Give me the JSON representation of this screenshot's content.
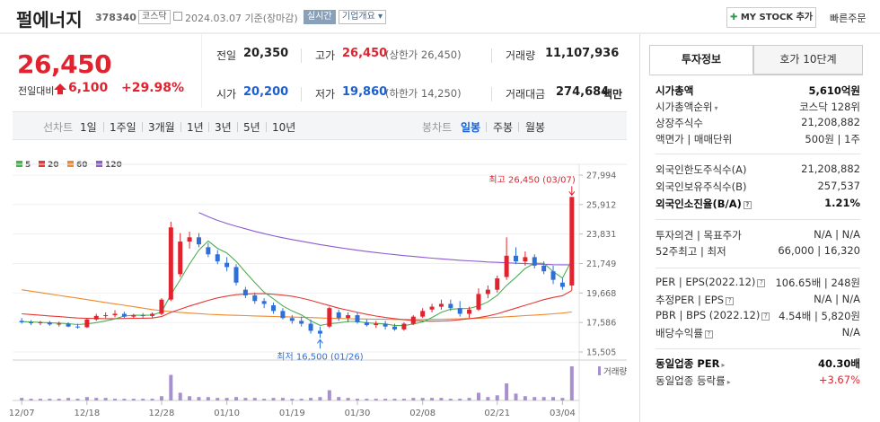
{
  "header": {
    "name": "펄에너지",
    "code": "378340",
    "market": "코스닥",
    "date": "2024.03.07 기준(장마감)",
    "live": "실시간",
    "overview": "기업개요 ▾",
    "mystock": "MY STOCK 추가",
    "quick_order": "빠른주문"
  },
  "price": {
    "current": "26,450",
    "change_label": "전일대비",
    "change": "6,100",
    "change_pct": "+29.98%"
  },
  "stats": {
    "prev_label": "전일",
    "prev": "20,350",
    "high_label": "고가",
    "high": "26,450",
    "high_sub": "(상한가 26,450)",
    "volume_label": "거래량",
    "volume": "11,107,936",
    "open_label": "시가",
    "open": "20,200",
    "low_label": "저가",
    "low": "19,860",
    "low_sub": "(하한가 14,250)",
    "amount_label": "거래대금",
    "amount": "274,684",
    "amount_unit": "백만"
  },
  "tabs": {
    "line_label": "선차트",
    "line_periods": [
      "1일",
      "1주일",
      "3개월",
      "1년",
      "3년",
      "5년",
      "10년"
    ],
    "candle_label": "봉차트",
    "candle_periods": [
      "일봉",
      "주봉",
      "월봉"
    ],
    "active_candle": "일봉"
  },
  "side": {
    "tab_info": "투자정보",
    "tab_quote": "호가 10단계",
    "rows": [
      {
        "label": "시가총액",
        "value": "5,610억원"
      },
      {
        "label": "시가총액순위",
        "value": "코스닥 128위"
      },
      {
        "label": "상장주식수",
        "value": "21,208,882"
      },
      {
        "label": "액면가 | 매매단위",
        "value": "500원 | 1주"
      },
      {
        "label": "외국인한도주식수(A)",
        "value": "21,208,882"
      },
      {
        "label": "외국인보유주식수(B)",
        "value": "257,537"
      },
      {
        "label": "외국인소진율(B/A)",
        "value": "1.21%"
      },
      {
        "label": "투자의견 | 목표주가",
        "value": "N/A | N/A"
      },
      {
        "label": "52주최고 | 최저",
        "value": "66,000 | 16,320"
      },
      {
        "label": "PER | EPS(2022.12)",
        "value": "106.65배 | 248원"
      },
      {
        "label": "추정PER | EPS",
        "value": "N/A | N/A"
      },
      {
        "label": "PBR | BPS (2022.12)",
        "value": "4.54배 | 5,820원"
      },
      {
        "label": "배당수익률",
        "value": "N/A"
      },
      {
        "label": "동일업종 PER",
        "value": "40.30배"
      },
      {
        "label": "동일업종 등락률",
        "value": "+3.67%"
      }
    ]
  },
  "chart_data": {
    "type": "candlestick",
    "legend": [
      "5",
      "20",
      "60",
      "120"
    ],
    "legend_colors": [
      "#4caf50",
      "#e53935",
      "#ef8a2c",
      "#8e5bd0"
    ],
    "y_ticks": [
      "27,994",
      "25,912",
      "23,831",
      "21,749",
      "19,668",
      "17,586",
      "15,505"
    ],
    "ylim": [
      15505,
      27994
    ],
    "x_ticks": [
      "12/07",
      "12/18",
      "12/28",
      "01/10",
      "01/19",
      "01/30",
      "02/08",
      "02/21",
      "03/04"
    ],
    "x_tick_index": [
      0,
      7,
      15,
      22,
      29,
      36,
      43,
      51,
      58
    ],
    "high_annotation": "최고 26,450 (03/07)",
    "low_annotation": "최저 16,500 (01/26)",
    "volume_label": "거래량",
    "candles": [
      [
        17700,
        17900,
        17500,
        17600
      ],
      [
        17600,
        17750,
        17400,
        17550
      ],
      [
        17550,
        17700,
        17400,
        17600
      ],
      [
        17600,
        17700,
        17350,
        17450
      ],
      [
        17450,
        17650,
        17300,
        17500
      ],
      [
        17500,
        17600,
        17250,
        17300
      ],
      [
        17300,
        17500,
        17150,
        17250
      ],
      [
        17250,
        17900,
        17200,
        17800
      ],
      [
        17800,
        18200,
        17700,
        18050
      ],
      [
        18050,
        18300,
        17900,
        18100
      ],
      [
        18100,
        18450,
        17950,
        18200
      ],
      [
        18200,
        18350,
        17900,
        18000
      ],
      [
        18000,
        18200,
        17850,
        18100
      ],
      [
        18100,
        18250,
        17900,
        18050
      ],
      [
        18050,
        18300,
        17900,
        18200
      ],
      [
        18200,
        19300,
        18100,
        19200
      ],
      [
        19200,
        24700,
        19100,
        24300
      ],
      [
        21000,
        23900,
        20800,
        23300
      ],
      [
        23300,
        24000,
        22800,
        23600
      ],
      [
        23600,
        23900,
        22900,
        23100
      ],
      [
        22900,
        23200,
        22200,
        22400
      ],
      [
        22400,
        22700,
        21700,
        21900
      ],
      [
        21800,
        22200,
        21200,
        21500
      ],
      [
        21500,
        21700,
        20200,
        20400
      ],
      [
        19900,
        20100,
        19300,
        19500
      ],
      [
        19500,
        19700,
        18900,
        19100
      ],
      [
        19100,
        19300,
        18600,
        18900
      ],
      [
        18800,
        19000,
        18200,
        18400
      ],
      [
        18400,
        18600,
        17800,
        17900
      ],
      [
        17900,
        18100,
        17500,
        17700
      ],
      [
        17700,
        18000,
        17300,
        17500
      ],
      [
        17500,
        17800,
        16800,
        17000
      ],
      [
        17000,
        17300,
        16500,
        16800
      ],
      [
        17300,
        18700,
        17200,
        18600
      ],
      [
        18300,
        18500,
        17700,
        17900
      ],
      [
        17900,
        18300,
        17600,
        18100
      ],
      [
        18100,
        18300,
        17500,
        17600
      ],
      [
        17600,
        17800,
        17300,
        17400
      ],
      [
        17400,
        17700,
        17200,
        17500
      ],
      [
        17500,
        17700,
        17100,
        17300
      ],
      [
        17300,
        17500,
        17000,
        17100
      ],
      [
        17100,
        17600,
        17000,
        17500
      ],
      [
        17500,
        18100,
        17400,
        18000
      ],
      [
        18000,
        18600,
        17900,
        18400
      ],
      [
        18500,
        18900,
        18300,
        18700
      ],
      [
        18700,
        19200,
        18500,
        18900
      ],
      [
        18900,
        19200,
        18400,
        18600
      ],
      [
        18600,
        19100,
        18000,
        18200
      ],
      [
        18200,
        18700,
        17900,
        18500
      ],
      [
        18500,
        20000,
        18400,
        19600
      ],
      [
        19600,
        20200,
        19300,
        19900
      ],
      [
        19900,
        20900,
        19700,
        20700
      ],
      [
        20800,
        23600,
        20600,
        22300
      ],
      [
        22300,
        22900,
        21700,
        21900
      ],
      [
        21900,
        22600,
        21600,
        22200
      ],
      [
        22200,
        22400,
        21400,
        21600
      ],
      [
        21600,
        21900,
        21000,
        21200
      ],
      [
        21200,
        21600,
        20300,
        20600
      ],
      [
        20400,
        20700,
        19900,
        20100
      ],
      [
        20200,
        26450,
        19860,
        26450
      ]
    ],
    "ma5": [
      17650,
      17620,
      17600,
      17560,
      17540,
      17500,
      17440,
      17490,
      17580,
      17700,
      17840,
      18040,
      18100,
      18100,
      18110,
      18330,
      19550,
      20610,
      21720,
      22700,
      23340,
      22820,
      22500,
      21900,
      21140,
      20400,
      19720,
      19260,
      18760,
      18400,
      18120,
      17700,
      17380,
      17500,
      17560,
      17660,
      17660,
      17560,
      17520,
      17480,
      17380,
      17360,
      17480,
      17620,
      17940,
      18300,
      18520,
      18560,
      18580,
      18760,
      19040,
      19500,
      20200,
      20780,
      21400,
      21780,
      21760,
      21180,
      20720,
      21990
    ],
    "ma20": [
      18200,
      18150,
      18100,
      18050,
      18000,
      17950,
      17900,
      17880,
      17870,
      17860,
      17860,
      17870,
      17880,
      17890,
      17900,
      18000,
      18300,
      18520,
      18750,
      18950,
      19150,
      19320,
      19450,
      19550,
      19600,
      19620,
      19620,
      19580,
      19520,
      19440,
      19310,
      19150,
      18960,
      18780,
      18600,
      18450,
      18300,
      18160,
      18040,
      17940,
      17860,
      17780,
      17720,
      17690,
      17680,
      17690,
      17720,
      17780,
      17850,
      17930,
      18050,
      18200,
      18400,
      18600,
      18800,
      19000,
      19200,
      19350,
      19480,
      19850
    ],
    "ma60": [
      19900,
      19800,
      19700,
      19600,
      19500,
      19400,
      19300,
      19200,
      19100,
      19000,
      18900,
      18800,
      18700,
      18600,
      18500,
      18420,
      18360,
      18300,
      18250,
      18210,
      18170,
      18140,
      18110,
      18090,
      18070,
      18050,
      18030,
      18010,
      17990,
      17970,
      17950,
      17930,
      17910,
      17890,
      17870,
      17850,
      17840,
      17830,
      17820,
      17810,
      17800,
      17800,
      17800,
      17800,
      17810,
      17820,
      17830,
      17850,
      17870,
      17890,
      17920,
      17950,
      17990,
      18030,
      18070,
      18110,
      18150,
      18200,
      18250,
      18330
    ],
    "ma120": [
      null,
      null,
      null,
      null,
      null,
      null,
      null,
      null,
      null,
      null,
      null,
      null,
      null,
      null,
      null,
      null,
      null,
      null,
      null,
      25350,
      25050,
      24800,
      24580,
      24380,
      24200,
      24020,
      23860,
      23710,
      23570,
      23440,
      23320,
      23200,
      23090,
      22980,
      22880,
      22780,
      22690,
      22600,
      22520,
      22450,
      22380,
      22310,
      22250,
      22190,
      22130,
      22080,
      22030,
      21980,
      21940,
      21900,
      21860,
      21830,
      21800,
      21770,
      21740,
      21710,
      21690,
      21670,
      21660,
      21660
    ],
    "volumes": [
      3,
      2,
      2,
      2,
      2,
      3,
      2,
      4,
      3,
      3,
      2,
      2,
      2,
      2,
      2,
      5,
      30,
      9,
      5,
      4,
      4,
      3,
      3,
      4,
      3,
      3,
      2,
      3,
      3,
      2,
      2,
      3,
      4,
      12,
      4,
      3,
      2,
      2,
      2,
      2,
      2,
      2,
      3,
      3,
      3,
      3,
      2,
      2,
      3,
      9,
      4,
      6,
      20,
      8,
      5,
      4,
      4,
      4,
      3,
      40
    ]
  }
}
